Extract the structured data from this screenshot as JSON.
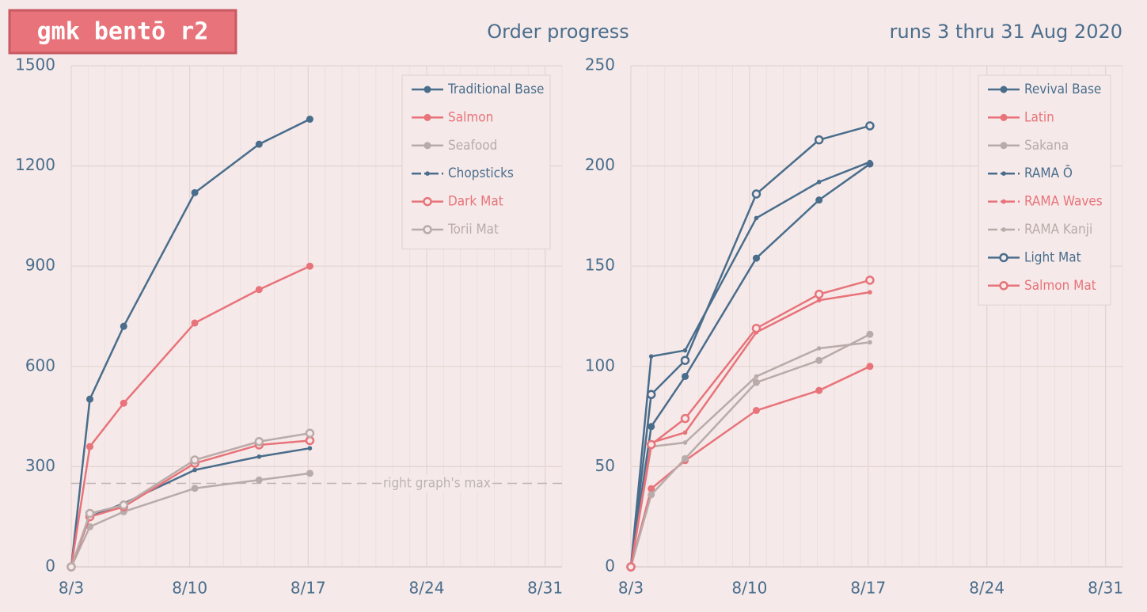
{
  "header": {
    "logo": "gmk bentō r2",
    "title": "Order progress",
    "dates": "runs 3 thru 31 Aug 2020"
  },
  "chart_data": [
    {
      "type": "line",
      "x": [
        3,
        4.1,
        6.1,
        10.3,
        14.1,
        17.1
      ],
      "xlim": [
        3,
        32
      ],
      "xticks": [
        {
          "value": 3,
          "label": "8/3"
        },
        {
          "value": 10,
          "label": "8/10"
        },
        {
          "value": 17,
          "label": "8/17"
        },
        {
          "value": 24,
          "label": "8/24"
        },
        {
          "value": 31,
          "label": "8/31"
        }
      ],
      "ylim": [
        0,
        1500
      ],
      "yticks": [
        0,
        300,
        600,
        900,
        1200,
        1500
      ],
      "grid": true,
      "legend": "upper right",
      "annotations": [
        {
          "text": "right graph's max",
          "y": 250
        }
      ],
      "series": [
        {
          "name": "Traditional Base",
          "color": "#4a6d8c",
          "marker": "dot",
          "line_style": "solid",
          "values": [
            0,
            502,
            720,
            1120,
            1265,
            1340
          ]
        },
        {
          "name": "Salmon",
          "color": "#e8737a",
          "marker": "dot",
          "line_style": "solid",
          "values": [
            0,
            360,
            490,
            730,
            830,
            900
          ]
        },
        {
          "name": "Seafood",
          "color": "#b9abaa",
          "marker": "dot",
          "line_style": "solid",
          "values": [
            0,
            120,
            165,
            235,
            260,
            280
          ]
        },
        {
          "name": "Chopsticks",
          "color": "#4a6d8c",
          "marker": "small",
          "line_style": "dashdot",
          "values": [
            0,
            150,
            190,
            290,
            330,
            355
          ]
        },
        {
          "name": "Dark Mat",
          "color": "#e8737a",
          "marker": "open",
          "line_style": "solid",
          "values": [
            0,
            150,
            180,
            310,
            365,
            378
          ]
        },
        {
          "name": "Torii Mat",
          "color": "#b9abaa",
          "marker": "open",
          "line_style": "solid",
          "values": [
            0,
            160,
            185,
            320,
            375,
            400
          ]
        }
      ]
    },
    {
      "type": "line",
      "x": [
        3,
        4.2,
        6.2,
        10.4,
        14.1,
        17.1
      ],
      "xlim": [
        3,
        32
      ],
      "xticks": [
        {
          "value": 3,
          "label": "8/3"
        },
        {
          "value": 10,
          "label": "8/10"
        },
        {
          "value": 17,
          "label": "8/17"
        },
        {
          "value": 24,
          "label": "8/24"
        },
        {
          "value": 31,
          "label": "8/31"
        }
      ],
      "ylim": [
        0,
        250
      ],
      "yticks": [
        0,
        50,
        100,
        150,
        200,
        250
      ],
      "grid": true,
      "legend": "upper right",
      "series": [
        {
          "name": "Revival Base",
          "color": "#4a6d8c",
          "marker": "dot",
          "line_style": "solid",
          "values": [
            0,
            70,
            95,
            154,
            183,
            201
          ]
        },
        {
          "name": "Latin",
          "color": "#e8737a",
          "marker": "dot",
          "line_style": "solid",
          "values": [
            0,
            39,
            53,
            78,
            88,
            100
          ]
        },
        {
          "name": "Sakana",
          "color": "#b9abaa",
          "marker": "dot",
          "line_style": "solid",
          "values": [
            0,
            36,
            54,
            92,
            103,
            116
          ]
        },
        {
          "name": "RAMA Ō",
          "color": "#4a6d8c",
          "marker": "small",
          "line_style": "dashdot",
          "values": [
            0,
            105,
            108,
            174,
            192,
            202
          ]
        },
        {
          "name": "RAMA Waves",
          "color": "#e8737a",
          "marker": "small",
          "line_style": "dashdot",
          "values": [
            0,
            62,
            67,
            117,
            133,
            137
          ]
        },
        {
          "name": "RAMA Kanji",
          "color": "#b9abaa",
          "marker": "small",
          "line_style": "dashdot",
          "values": [
            0,
            60,
            62,
            95,
            109,
            112
          ]
        },
        {
          "name": "Light Mat",
          "color": "#4a6d8c",
          "marker": "open",
          "line_style": "solid",
          "values": [
            0,
            86,
            103,
            186,
            213,
            220
          ]
        },
        {
          "name": "Salmon Mat",
          "color": "#e8737a",
          "marker": "open",
          "line_style": "solid",
          "values": [
            0,
            61,
            74,
            119,
            136,
            143
          ]
        }
      ]
    }
  ]
}
